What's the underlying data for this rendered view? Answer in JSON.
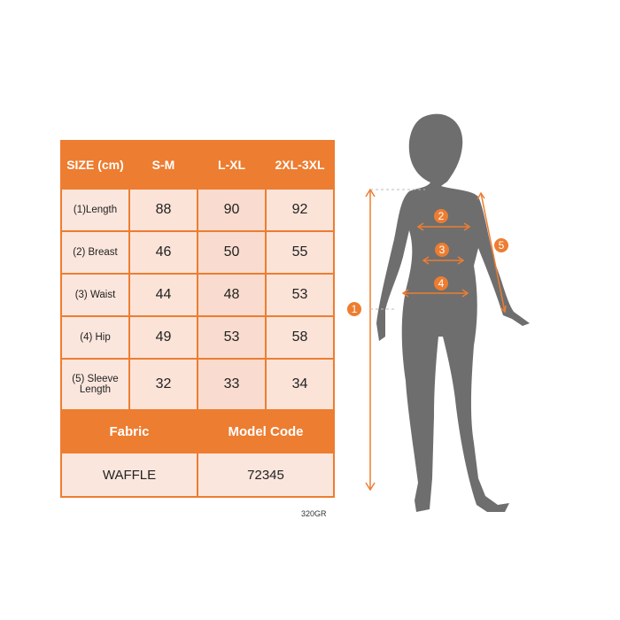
{
  "table": {
    "header": [
      "SIZE (cm)",
      "S-M",
      "L-XL",
      "2XL-3XL"
    ],
    "rows": [
      {
        "label": "(1)Length",
        "values": [
          "88",
          "90",
          "92"
        ]
      },
      {
        "label": "(2) Breast",
        "values": [
          "46",
          "50",
          "55"
        ]
      },
      {
        "label": "(3) Waist",
        "values": [
          "44",
          "48",
          "53"
        ]
      },
      {
        "label": "(4) Hip",
        "values": [
          "49",
          "53",
          "58"
        ]
      },
      {
        "label": "(5) Sleeve Length",
        "values": [
          "32",
          "33",
          "34"
        ]
      }
    ],
    "footer_headers": [
      "Fabric",
      "Model Code"
    ],
    "footer_values": [
      "WAFFLE",
      "72345"
    ]
  },
  "fabric_weight": "320GR",
  "figure": {
    "markers": [
      "1",
      "2",
      "3",
      "4",
      "5"
    ]
  },
  "colors": {
    "accent": "#ED7D31",
    "cell": "#FBE3D8",
    "silhouette": "#6E6E6E"
  }
}
